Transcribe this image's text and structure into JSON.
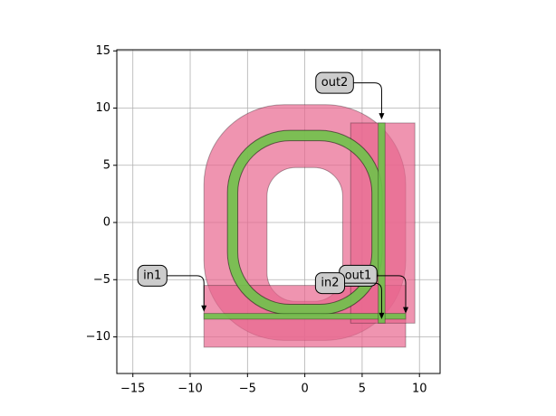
{
  "chart_data": {
    "type": "layout",
    "xlim": [
      -16.4,
      11.8
    ],
    "ylim": [
      -13.2,
      15.1
    ],
    "xticks": [
      {
        "value": -15,
        "label": "−15"
      },
      {
        "value": -10,
        "label": "−10"
      },
      {
        "value": -5,
        "label": "−5"
      },
      0,
      5,
      10
    ],
    "yticks": [
      {
        "value": -10,
        "label": "−10"
      },
      {
        "value": -5,
        "label": "−5"
      },
      0,
      5,
      10,
      15
    ],
    "grid": true,
    "shapes": [
      {
        "kind": "ring-region",
        "bbox": [
          -8.8,
          -10.3,
          8.8,
          10.3
        ],
        "radius": 7,
        "hole": [
          -3.3,
          -6.9,
          3.3,
          4.8
        ],
        "hole_radius": 2.5,
        "color": "#e8668f"
      },
      {
        "kind": "rect",
        "bbox": [
          -8.8,
          -10.9,
          8.8,
          -5.5
        ],
        "color": "#e8668f"
      },
      {
        "kind": "rect",
        "bbox": [
          4.0,
          -8.8,
          9.6,
          8.7
        ],
        "color": "#e8668f"
      },
      {
        "kind": "ring",
        "bbox": [
          -6.3,
          -7.6,
          6.3,
          7.6
        ],
        "radius": 5,
        "width": 0.9,
        "color": "#6fc24a"
      },
      {
        "kind": "rect",
        "bbox": [
          -8.8,
          -8.45,
          8.8,
          -7.95
        ],
        "color": "#6fc24a"
      },
      {
        "kind": "rect",
        "bbox": [
          6.4,
          -8.8,
          7.0,
          8.7
        ],
        "color": "#6fc24a"
      }
    ],
    "ports": [
      {
        "name": "out2",
        "label_at": [
          2.6,
          12.2
        ],
        "target": [
          6.7,
          9.0
        ]
      },
      {
        "name": "in1",
        "label_at": [
          -13.3,
          -4.65
        ],
        "target": [
          -8.8,
          -7.8
        ]
      },
      {
        "name": "out1",
        "label_at": [
          4.65,
          -4.65
        ],
        "target": [
          8.8,
          -7.95
        ]
      },
      {
        "name": "in2",
        "label_at": [
          2.2,
          -5.3
        ],
        "target": [
          6.7,
          -8.45
        ]
      }
    ]
  }
}
